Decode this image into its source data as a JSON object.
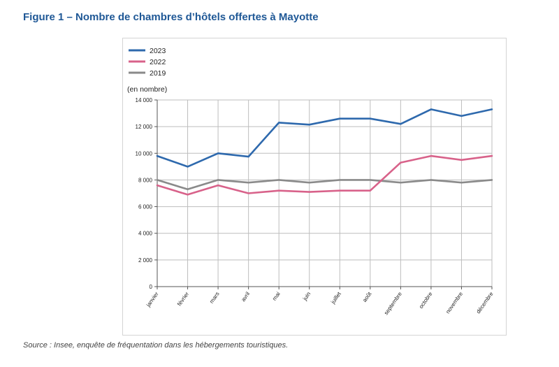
{
  "figure": {
    "title": "Figure 1 – Nombre de chambres d’hôtels offertes à Mayotte",
    "source": "Source : Insee, enquête de fréquentation dans les hébergements touristiques."
  },
  "chart_data": {
    "type": "line",
    "unit_label": "(en nombre)",
    "categories": [
      "janvier",
      "février",
      "mars",
      "avril",
      "mai",
      "juin",
      "juillet",
      "août",
      "septembre",
      "octobre",
      "novembre",
      "décembre"
    ],
    "ylim": [
      0,
      14000
    ],
    "yticks": [
      0,
      2000,
      4000,
      6000,
      8000,
      10000,
      12000,
      14000
    ],
    "ytick_labels": [
      "0",
      "2 000",
      "4 000",
      "6 000",
      "8 000",
      "10 000",
      "12 000",
      "14 000"
    ],
    "grid": true,
    "legend_position": "top-left",
    "series": [
      {
        "name": "2023",
        "color": "#2e69ad",
        "values": [
          9800,
          9000,
          10000,
          9750,
          12300,
          12150,
          12600,
          12600,
          12200,
          13300,
          12800,
          13300
        ]
      },
      {
        "name": "2022",
        "color": "#d8628a",
        "values": [
          7600,
          6900,
          7600,
          7000,
          7200,
          7100,
          7200,
          7200,
          9300,
          9800,
          9500,
          9800
        ]
      },
      {
        "name": "2019",
        "color": "#8a8a8a",
        "values": [
          8000,
          7300,
          8000,
          7800,
          8000,
          7800,
          8000,
          8000,
          7800,
          8000,
          7800,
          8000
        ]
      }
    ]
  }
}
